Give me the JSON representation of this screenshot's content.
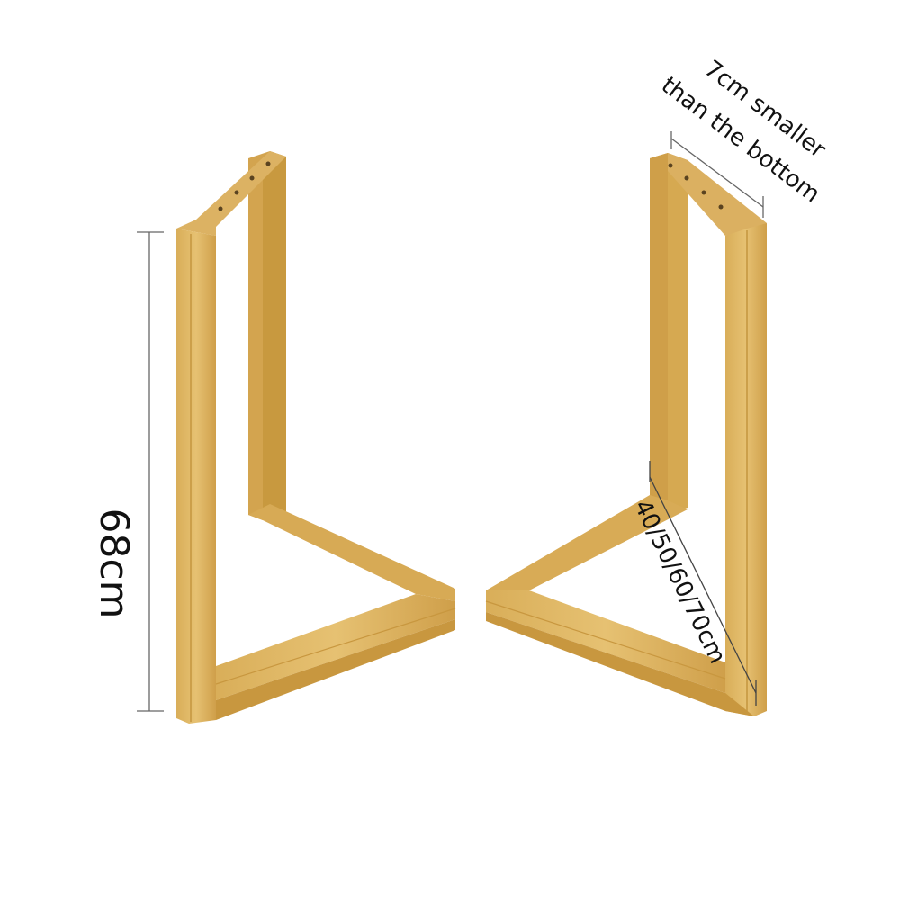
{
  "annotations": {
    "height_label": "68cm",
    "top_width_line1": "7cm smaller",
    "top_width_line2": "than the bottom",
    "length_label": "40/50/60/70cm"
  },
  "colors": {
    "frame_light": "#e2bb67",
    "frame_mid": "#d4a651",
    "frame_dark": "#b88936",
    "frame_edge": "#c79a48",
    "dimension_line": "#666666",
    "background": "#ffffff"
  }
}
